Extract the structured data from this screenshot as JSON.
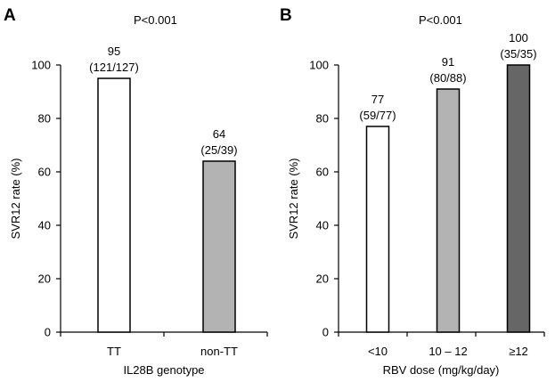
{
  "chart_data": [
    {
      "type": "bar",
      "panel": "A",
      "annotation": "P<0.001",
      "categories": [
        "TT",
        "non-TT"
      ],
      "values": [
        95,
        64
      ],
      "bar_labels": [
        [
          "95",
          "(121/127)"
        ],
        [
          "64",
          "(25/39)"
        ]
      ],
      "bar_colors": [
        "#ffffff",
        "#b3b3b3"
      ],
      "xlabel": "IL28B genotype",
      "ylabel": "SVR12 rate (%)",
      "ylim": [
        0,
        100
      ],
      "yticks": [
        0,
        20,
        40,
        60,
        80,
        100
      ],
      "grid": false
    },
    {
      "type": "bar",
      "panel": "B",
      "annotation": "P<0.001",
      "categories": [
        "<10",
        "10 – 12",
        "≥12"
      ],
      "values": [
        77,
        91,
        100
      ],
      "bar_labels": [
        [
          "77",
          "(59/77)"
        ],
        [
          "91",
          "(80/88)"
        ],
        [
          "100",
          "(35/35)"
        ]
      ],
      "bar_colors": [
        "#ffffff",
        "#b3b3b3",
        "#666666"
      ],
      "xlabel": "RBV dose (mg/kg/day)",
      "ylabel": "SVR12 rate (%)",
      "ylim": [
        0,
        100
      ],
      "yticks": [
        0,
        20,
        40,
        60,
        80,
        100
      ],
      "grid": false
    }
  ]
}
